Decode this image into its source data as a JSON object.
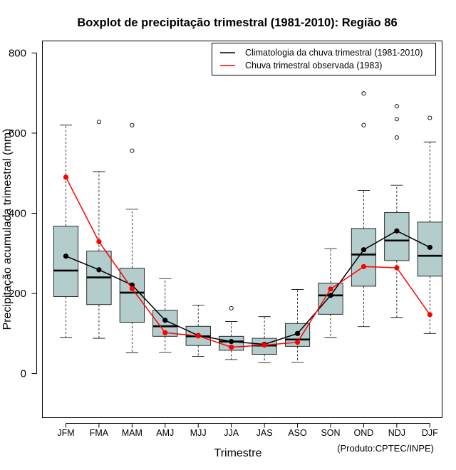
{
  "chart_data": {
    "type": "boxplot",
    "title": "Boxplot de precipitação trimestral (1981-2010): Região 86",
    "xlabel": "Trimestre",
    "ylabel": "Precipitação acumulada trimestral (mm)",
    "credit": "(Produto:CPTEC/INPE)",
    "ylim": [
      -110,
      830
    ],
    "yticks": [
      0,
      200,
      400,
      600,
      800
    ],
    "categories": [
      "JFM",
      "FMA",
      "MAM",
      "AMJ",
      "MJJ",
      "JJA",
      "JAS",
      "ASO",
      "SON",
      "OND",
      "NDJ",
      "DJF"
    ],
    "boxes": [
      {
        "whisker_low": 90,
        "q1": 192,
        "median": 257,
        "q3": 368,
        "whisker_high": 620,
        "outliers": []
      },
      {
        "whisker_low": 88,
        "q1": 172,
        "median": 240,
        "q3": 306,
        "whisker_high": 504,
        "outliers": [
          628
        ]
      },
      {
        "whisker_low": 52,
        "q1": 128,
        "median": 202,
        "q3": 263,
        "whisker_high": 410,
        "outliers": [
          556,
          620
        ]
      },
      {
        "whisker_low": 53,
        "q1": 93,
        "median": 118,
        "q3": 158,
        "whisker_high": 237,
        "outliers": []
      },
      {
        "whisker_low": 43,
        "q1": 70,
        "median": 93,
        "q3": 118,
        "whisker_high": 171,
        "outliers": []
      },
      {
        "whisker_low": 35,
        "q1": 58,
        "median": 80,
        "q3": 93,
        "whisker_high": 130,
        "outliers": [
          163
        ]
      },
      {
        "whisker_low": 27,
        "q1": 48,
        "median": 70,
        "q3": 88,
        "whisker_high": 142,
        "outliers": []
      },
      {
        "whisker_low": 28,
        "q1": 68,
        "median": 85,
        "q3": 125,
        "whisker_high": 210,
        "outliers": []
      },
      {
        "whisker_low": 90,
        "q1": 148,
        "median": 195,
        "q3": 226,
        "whisker_high": 312,
        "outliers": []
      },
      {
        "whisker_low": 117,
        "q1": 218,
        "median": 297,
        "q3": 362,
        "whisker_high": 457,
        "outliers": [
          620,
          699
        ]
      },
      {
        "whisker_low": 140,
        "q1": 282,
        "median": 332,
        "q3": 402,
        "whisker_high": 470,
        "outliers": [
          589,
          635,
          667
        ]
      },
      {
        "whisker_low": 100,
        "q1": 243,
        "median": 294,
        "q3": 378,
        "whisker_high": 578,
        "outliers": [
          638
        ]
      }
    ],
    "series": [
      {
        "name": "Climatologia da chuva trimestral (1981-2010)",
        "color": "#000000",
        "values": [
          293,
          259,
          221,
          133,
          95,
          80,
          73,
          100,
          195,
          309,
          356,
          315
        ]
      },
      {
        "name": "Chuva trimestral observada (1983)",
        "color": "#ff0000",
        "values": [
          490,
          329,
          212,
          102,
          94,
          66,
          71,
          78,
          211,
          267,
          264,
          147
        ]
      }
    ],
    "box_color": "#b3cccc",
    "legend_position": "top-right"
  }
}
